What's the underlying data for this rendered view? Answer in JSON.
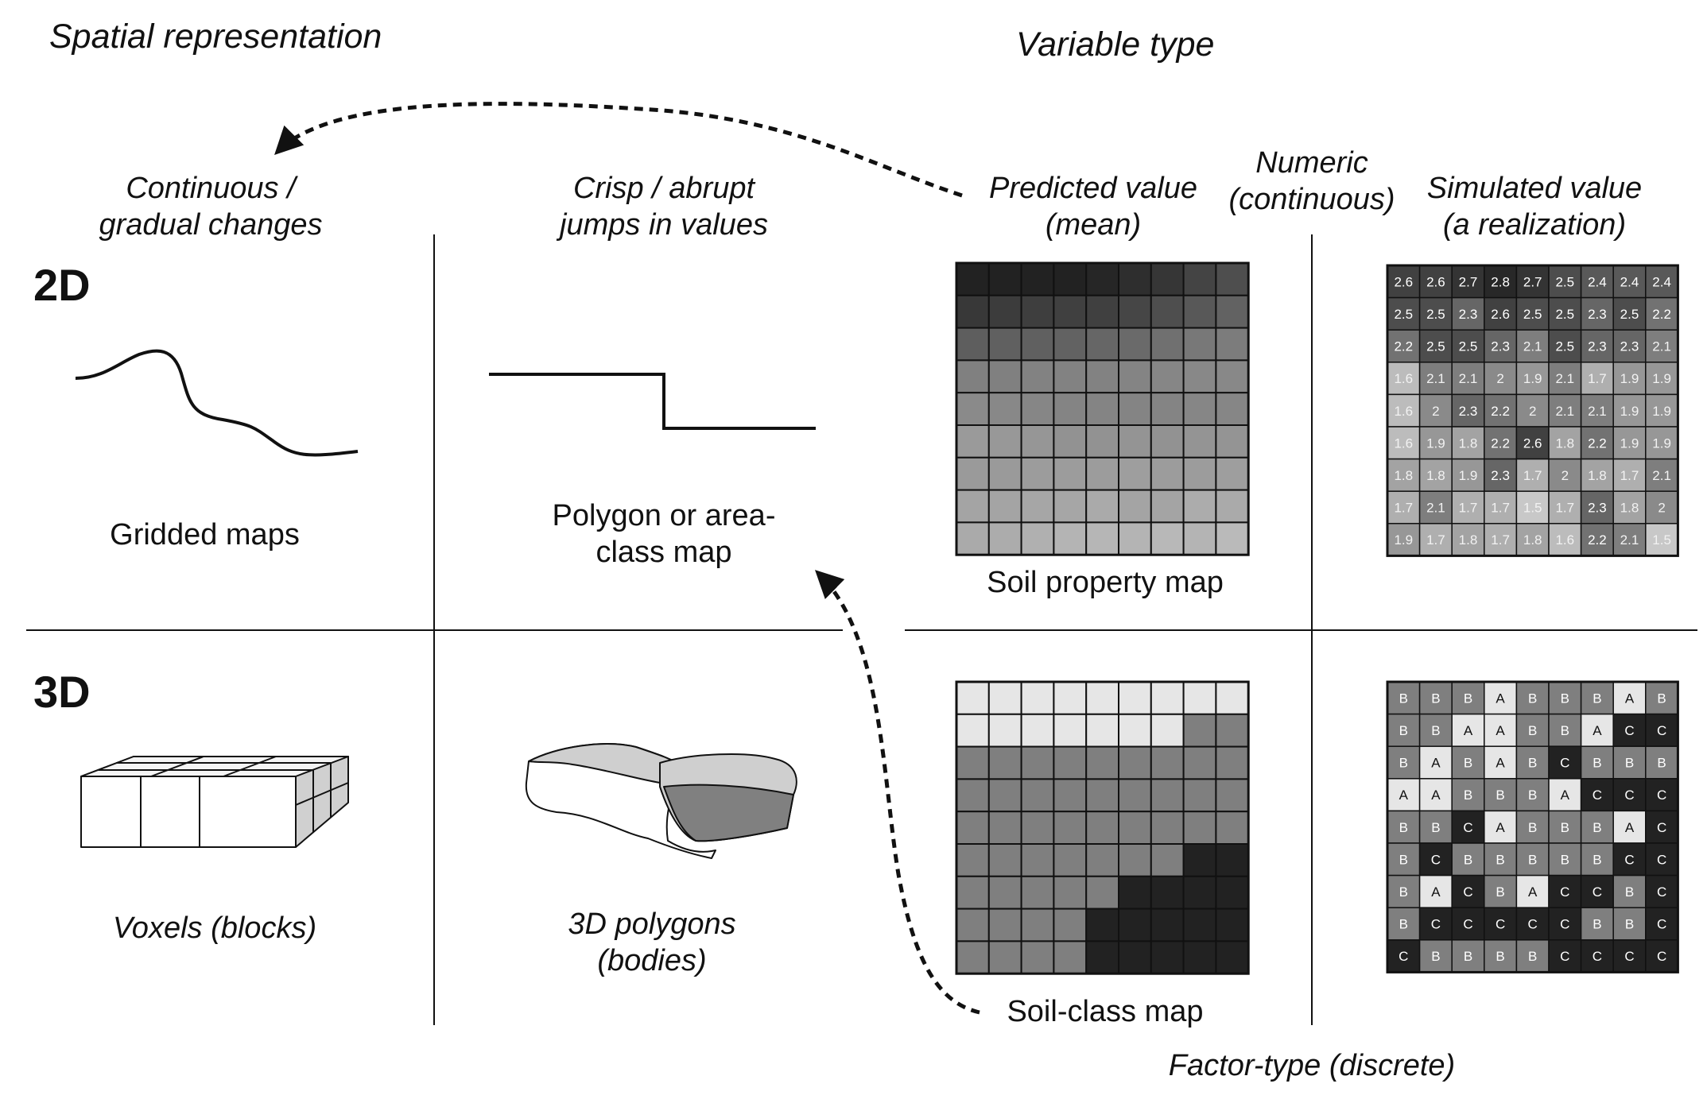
{
  "headers": {
    "spatial_representation": "Spatial representation",
    "variable_type": "Variable type"
  },
  "columns": {
    "continuous": [
      "Continuous /",
      "gradual changes"
    ],
    "crisp": [
      "Crisp / abrupt",
      "jumps in values"
    ],
    "predicted": [
      "Predicted value",
      "(mean)"
    ],
    "numeric": [
      "Numeric",
      "(continuous)"
    ],
    "simulated": [
      "Simulated value",
      "(a realization)"
    ]
  },
  "rows": {
    "two_d": "2D",
    "three_d": "3D"
  },
  "labels": {
    "gridded_maps": "Gridded maps",
    "polygon_map": [
      "Polygon or area-",
      "class map"
    ],
    "soil_property_map": "Soil property map",
    "voxels": "Voxels (blocks)",
    "polygons_3d": [
      "3D polygons",
      "(bodies)"
    ],
    "soil_class_map": "Soil-class map",
    "factor_type": "Factor-type (discrete)"
  },
  "colors": {
    "line": "#111111",
    "class_A": "#e6e6e6",
    "class_B": "#7f7f7f",
    "class_C": "#222222",
    "voxel_side": "#d0d0d0",
    "polygon_light": "#cfcfcf",
    "polygon_dark": "#808080"
  },
  "mean_grid_gray": [
    [
      34,
      34,
      34,
      34,
      38,
      46,
      54,
      68,
      78
    ],
    [
      56,
      60,
      62,
      64,
      64,
      70,
      78,
      88,
      98
    ],
    [
      94,
      96,
      96,
      98,
      102,
      106,
      112,
      120,
      124
    ],
    [
      128,
      128,
      130,
      130,
      130,
      132,
      134,
      136,
      136
    ],
    [
      138,
      136,
      134,
      132,
      132,
      132,
      132,
      134,
      134
    ],
    [
      154,
      152,
      150,
      146,
      146,
      148,
      146,
      148,
      148
    ],
    [
      154,
      154,
      156,
      156,
      156,
      158,
      156,
      156,
      158
    ],
    [
      164,
      164,
      166,
      166,
      170,
      164,
      164,
      172,
      170
    ],
    [
      170,
      172,
      176,
      180,
      182,
      180,
      184,
      180,
      186
    ]
  ],
  "realization_grid": [
    [
      "2.6",
      "2.6",
      "2.7",
      "2.8",
      "2.7",
      "2.5",
      "2.4",
      "2.4",
      "2.4"
    ],
    [
      "2.5",
      "2.5",
      "2.3",
      "2.6",
      "2.5",
      "2.5",
      "2.3",
      "2.5",
      "2.2"
    ],
    [
      "2.2",
      "2.5",
      "2.5",
      "2.3",
      "2.1",
      "2.5",
      "2.3",
      "2.3",
      "2.1"
    ],
    [
      "1.6",
      "2.1",
      "2.1",
      "2",
      "1.9",
      "2.1",
      "1.7",
      "1.9",
      "1.9"
    ],
    [
      "1.6",
      "2",
      "2.3",
      "2.2",
      "2",
      "2.1",
      "2.1",
      "1.9",
      "1.9"
    ],
    [
      "1.6",
      "1.9",
      "1.8",
      "2.2",
      "2.6",
      "1.8",
      "2.2",
      "1.9",
      "1.9"
    ],
    [
      "1.8",
      "1.8",
      "1.9",
      "2.3",
      "1.7",
      "2",
      "1.8",
      "1.7",
      "2.1"
    ],
    [
      "1.7",
      "2.1",
      "1.7",
      "1.7",
      "1.5",
      "1.7",
      "2.3",
      "1.8",
      "2"
    ],
    [
      "1.9",
      "1.7",
      "1.8",
      "1.7",
      "1.8",
      "1.6",
      "2.2",
      "2.1",
      "1.5"
    ]
  ],
  "class_grid": [
    [
      "A",
      "A",
      "A",
      "A",
      "A",
      "A",
      "A",
      "A",
      "A"
    ],
    [
      "A",
      "A",
      "A",
      "A",
      "A",
      "A",
      "A",
      "B",
      "B"
    ],
    [
      "B",
      "B",
      "B",
      "B",
      "B",
      "B",
      "B",
      "B",
      "B"
    ],
    [
      "B",
      "B",
      "B",
      "B",
      "B",
      "B",
      "B",
      "B",
      "B"
    ],
    [
      "B",
      "B",
      "B",
      "B",
      "B",
      "B",
      "B",
      "B",
      "B"
    ],
    [
      "B",
      "B",
      "B",
      "B",
      "B",
      "B",
      "B",
      "C",
      "C"
    ],
    [
      "B",
      "B",
      "B",
      "B",
      "B",
      "C",
      "C",
      "C",
      "C"
    ],
    [
      "B",
      "B",
      "B",
      "B",
      "C",
      "C",
      "C",
      "C",
      "C"
    ],
    [
      "B",
      "B",
      "B",
      "B",
      "C",
      "C",
      "C",
      "C",
      "C"
    ]
  ],
  "class_realization_grid": [
    [
      "B",
      "B",
      "B",
      "A",
      "B",
      "B",
      "B",
      "A",
      "B"
    ],
    [
      "B",
      "B",
      "A",
      "A",
      "B",
      "B",
      "A",
      "C",
      "C"
    ],
    [
      "B",
      "A",
      "B",
      "A",
      "B",
      "C",
      "B",
      "B",
      "B"
    ],
    [
      "A",
      "A",
      "B",
      "B",
      "B",
      "A",
      "C",
      "C",
      "C"
    ],
    [
      "B",
      "B",
      "C",
      "A",
      "B",
      "B",
      "B",
      "A",
      "C"
    ],
    [
      "B",
      "C",
      "B",
      "B",
      "B",
      "B",
      "B",
      "C",
      "C"
    ],
    [
      "B",
      "A",
      "C",
      "B",
      "A",
      "C",
      "C",
      "B",
      "C"
    ],
    [
      "B",
      "C",
      "C",
      "C",
      "C",
      "C",
      "B",
      "B",
      "C"
    ],
    [
      "C",
      "B",
      "B",
      "B",
      "B",
      "C",
      "C",
      "C",
      "C"
    ]
  ]
}
